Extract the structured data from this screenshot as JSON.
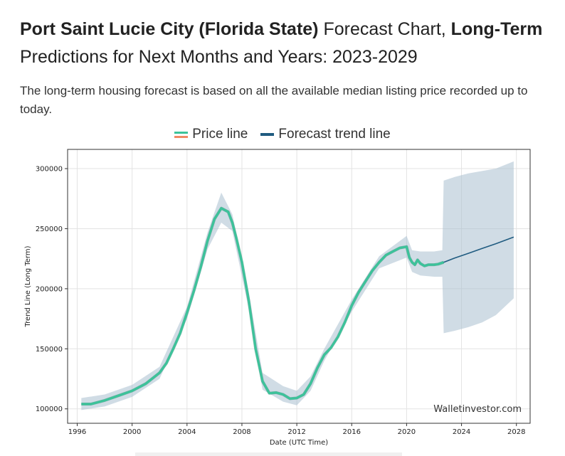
{
  "header": {
    "title_bold_1": "Port Saint Lucie City (Florida State)",
    "title_normal_1": " Forecast Chart, ",
    "title_bold_2": "Long-Term",
    "title_normal_2": " Predictions for Next Months and Years: 2023-2029",
    "subtitle": "The long-term housing forecast is based on all the available median listing price recorded up to today."
  },
  "legend": {
    "price_label": "Price line",
    "forecast_label": "Forecast trend line"
  },
  "colors": {
    "price_line": "#3cc39a",
    "price_line_alt": "#f08a64",
    "forecast_line": "#1f5b80",
    "band": "#a9bfcf",
    "grid": "#e3e3e3"
  },
  "chart_data": {
    "type": "line",
    "xlabel": "Date (UTC Time)",
    "ylabel": "Trend Line (Long Term)",
    "xlim": [
      1995.3,
      2029.0
    ],
    "ylim": [
      88000,
      316000
    ],
    "x_ticks": [
      1996,
      2000,
      2004,
      2008,
      2012,
      2016,
      2020,
      2024,
      2028
    ],
    "x_tick_labels": [
      "1996",
      "2000",
      "2004",
      "2008",
      "2012",
      "2016",
      "2020",
      "2024",
      "2028"
    ],
    "y_ticks": [
      100000,
      150000,
      200000,
      250000,
      300000
    ],
    "y_tick_labels": [
      "100000",
      "150000",
      "200000",
      "250000",
      "300000"
    ],
    "grid": true,
    "watermark": "Walletinvestor.com",
    "series": [
      {
        "name": "Price line",
        "x": [
          1996.3,
          1997.0,
          1998.0,
          1999.0,
          2000.0,
          2001.0,
          2002.0,
          2002.5,
          2003.0,
          2003.5,
          2004.0,
          2004.5,
          2005.0,
          2005.5,
          2006.0,
          2006.5,
          2007.0,
          2007.3,
          2007.6,
          2008.0,
          2008.5,
          2009.0,
          2009.5,
          2010.0,
          2010.5,
          2011.0,
          2011.5,
          2012.0,
          2012.5,
          2013.0,
          2013.5,
          2014.0,
          2014.5,
          2015.0,
          2015.5,
          2016.0,
          2016.5,
          2017.0,
          2017.5,
          2018.0,
          2018.5,
          2019.0,
          2019.5,
          2020.0,
          2020.2,
          2020.4,
          2020.6,
          2020.8,
          2021.0,
          2021.3,
          2021.6,
          2022.0,
          2022.3,
          2022.7
        ],
        "y": [
          104000,
          104000,
          107000,
          111000,
          115000,
          121000,
          130000,
          138000,
          150000,
          163000,
          180000,
          198000,
          218000,
          240000,
          258000,
          267000,
          264000,
          255000,
          242000,
          222000,
          190000,
          150000,
          123000,
          113000,
          113500,
          112000,
          108500,
          109000,
          112000,
          121000,
          134000,
          145000,
          151000,
          160000,
          172000,
          186000,
          197000,
          206000,
          215000,
          222000,
          228000,
          231000,
          234000,
          235000,
          226000,
          222000,
          220000,
          224000,
          221000,
          219000,
          220000,
          220000,
          220500,
          222000
        ]
      },
      {
        "name": "Forecast trend line",
        "x": [
          2022.7,
          2023.5,
          2024.5,
          2025.5,
          2026.5,
          2027.8
        ],
        "y": [
          222000,
          225500,
          229500,
          233500,
          237500,
          243000
        ]
      }
    ],
    "confidence_band": {
      "x": [
        1996.3,
        1998.0,
        2000.0,
        2002.0,
        2004.0,
        2005.5,
        2006.5,
        2007.3,
        2008.5,
        2009.5,
        2011.0,
        2012.0,
        2013.0,
        2014.0,
        2016.0,
        2018.0,
        2020.0,
        2020.4,
        2021.0,
        2022.0,
        2022.6,
        2022.7,
        2023.5,
        2024.5,
        2025.5,
        2026.5,
        2027.8
      ],
      "upper": [
        109000,
        112000,
        120000,
        135000,
        185000,
        247000,
        280000,
        262000,
        197000,
        130000,
        119000,
        115000,
        127000,
        150000,
        191000,
        227000,
        244000,
        232000,
        231000,
        231000,
        232000,
        290000,
        293000,
        296000,
        298000,
        300000,
        306000
      ],
      "lower": [
        99000,
        102000,
        110000,
        125000,
        175000,
        233000,
        255000,
        248000,
        183000,
        116000,
        106000,
        103000,
        115000,
        140000,
        181000,
        217000,
        226000,
        214000,
        211000,
        210000,
        210000,
        163000,
        165000,
        168000,
        172000,
        178000,
        192000
      ]
    }
  }
}
